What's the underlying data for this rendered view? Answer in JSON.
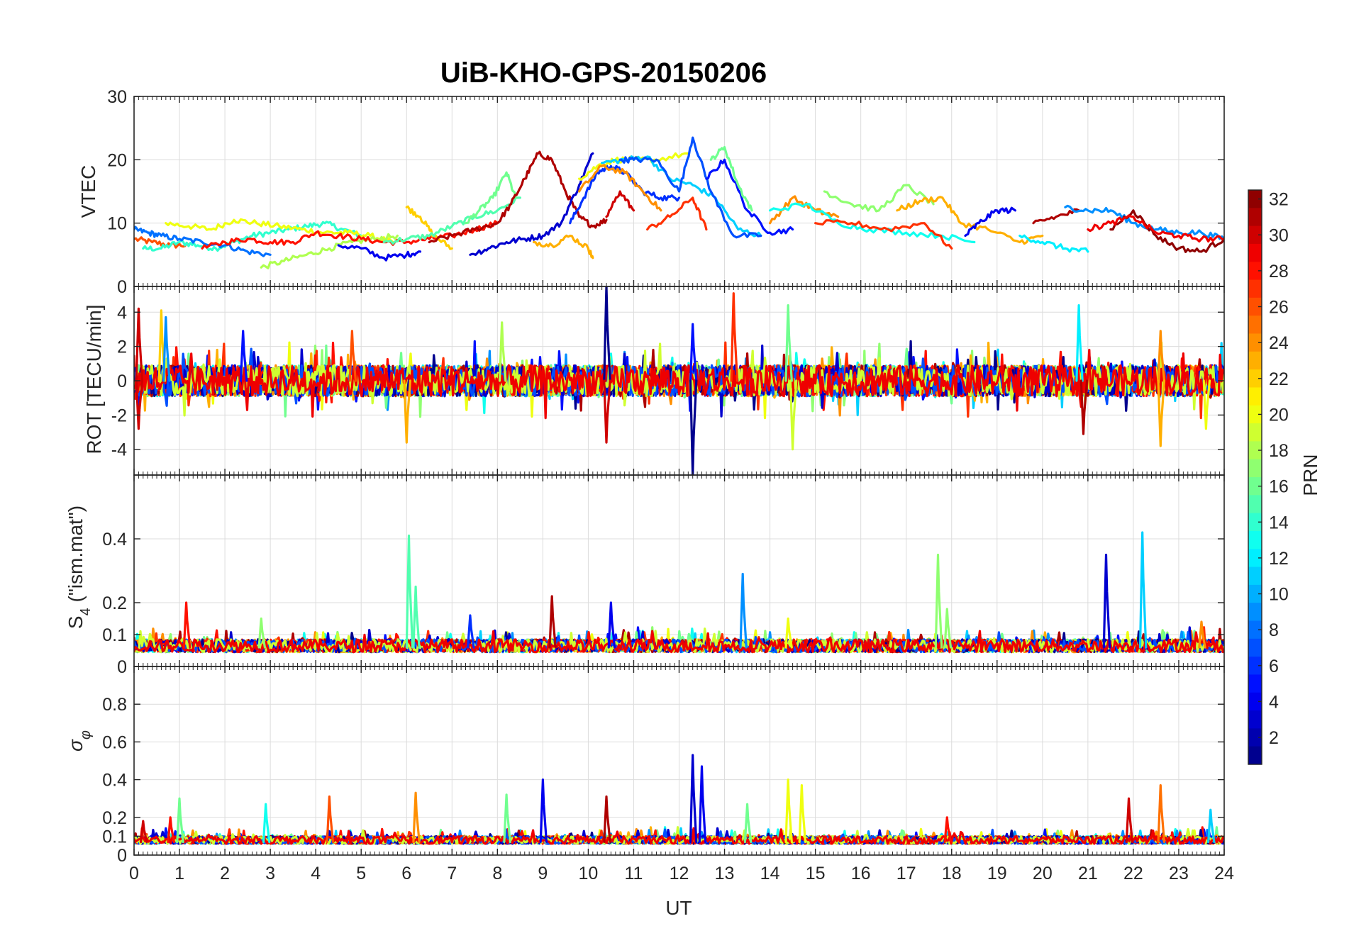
{
  "figure": {
    "title": "UiB-KHO-GPS-20150206"
  },
  "chart_data": [
    {
      "type": "line",
      "panel": "VTEC",
      "ylabel": "VTEC",
      "xlabel": "",
      "xlim": [
        0,
        24
      ],
      "ylim": [
        0,
        30
      ],
      "yticks": [
        0,
        10,
        20,
        30
      ],
      "grid": true,
      "series": [
        {
          "prn": 26,
          "x": [
            0,
            0.4,
            0.8,
            1.2
          ],
          "y": [
            7.5,
            7,
            6.5,
            6.5
          ]
        },
        {
          "prn": 14,
          "x": [
            0.2,
            0.6,
            1.0,
            1.4,
            1.8,
            2.2,
            2.6,
            3.0,
            3.4,
            3.8,
            4.2,
            4.6,
            5.0
          ],
          "y": [
            6,
            6,
            7,
            6.5,
            6,
            7,
            8,
            8.5,
            9,
            9.5,
            10,
            9,
            8
          ]
        },
        {
          "prn": 20,
          "x": [
            0.7,
            1.2,
            1.7,
            2.2,
            2.7,
            3.2,
            3.7,
            4.2,
            4.7,
            5.2,
            5.7
          ],
          "y": [
            10,
            9.5,
            9,
            10.5,
            10,
            9.5,
            9,
            8.5,
            8.5,
            8,
            7
          ]
        },
        {
          "prn": 8,
          "x": [
            0,
            0.3,
            0.6,
            1.0,
            1.5,
            2.0,
            2.5,
            3.0
          ],
          "y": [
            9,
            8.5,
            8,
            7.5,
            7,
            6.5,
            5.5,
            5
          ]
        },
        {
          "prn": 18,
          "x": [
            2.8,
            3.3,
            3.8,
            4.3,
            4.8,
            5.3,
            5.8
          ],
          "y": [
            3,
            4,
            5,
            6,
            7,
            7.5,
            8
          ]
        },
        {
          "prn": 28,
          "x": [
            1.5,
            2.0,
            2.5,
            3.0,
            3.5,
            4.0,
            4.5,
            5.0,
            5.5,
            6.0,
            6.5,
            7.0,
            7.5,
            8.0
          ],
          "y": [
            6,
            7,
            7.5,
            7,
            7,
            8.5,
            8,
            7.5,
            7,
            7,
            7.5,
            8,
            9,
            10
          ]
        },
        {
          "prn": 4,
          "x": [
            4.5,
            5.0,
            5.5,
            6.0,
            6.3
          ],
          "y": [
            6.5,
            6,
            4.5,
            5,
            5.5
          ]
        },
        {
          "prn": 22,
          "x": [
            6.0,
            6.3,
            6.6,
            7.0
          ],
          "y": [
            12.5,
            11,
            8,
            6
          ]
        },
        {
          "prn": 15,
          "x": [
            5.5,
            6.0,
            6.5,
            7.0,
            7.5,
            8.0,
            8.5
          ],
          "y": [
            7,
            7.5,
            8,
            9.5,
            11,
            12,
            14
          ]
        },
        {
          "prn": 16,
          "x": [
            7.3,
            7.6,
            7.9,
            8.2,
            8.4
          ],
          "y": [
            10,
            12,
            14,
            18,
            14
          ]
        },
        {
          "prn": 31,
          "x": [
            6.5,
            7.0,
            7.5,
            8.0,
            8.3,
            8.6,
            8.9,
            9.2,
            9.5,
            9.8,
            10.1,
            10.4
          ],
          "y": [
            7,
            8,
            9,
            10,
            13,
            17,
            21,
            20,
            15,
            11,
            9.5,
            10.5
          ]
        },
        {
          "prn": 3,
          "x": [
            7.4,
            7.8,
            8.2,
            8.6,
            9.0,
            9.4,
            9.8,
            10.1
          ],
          "y": [
            5,
            6,
            7,
            7.5,
            8,
            10,
            16,
            21
          ]
        },
        {
          "prn": 23,
          "x": [
            8.8,
            9.2,
            9.6,
            10.0,
            10.1
          ],
          "y": [
            7,
            6.5,
            8,
            6,
            4.5
          ]
        },
        {
          "prn": 6,
          "x": [
            9.6,
            9.9,
            10.2,
            10.5,
            10.8,
            11.2,
            11.6,
            12.0
          ],
          "y": [
            10,
            14,
            18,
            19,
            18,
            15,
            14,
            14
          ]
        },
        {
          "prn": 20,
          "x": [
            9.8,
            10.2,
            10.6,
            11.0,
            11.5,
            12.2
          ],
          "y": [
            17,
            19,
            20,
            20,
            20,
            21
          ]
        },
        {
          "prn": 24,
          "x": [
            9.8,
            10.3,
            10.8,
            11.2,
            11.6
          ],
          "y": [
            15,
            19,
            18,
            15,
            12
          ]
        },
        {
          "prn": 11,
          "x": [
            10.3,
            10.8,
            11.3,
            11.8,
            12.3,
            12.8,
            13.3,
            13.8
          ],
          "y": [
            19.5,
            20,
            20.5,
            17,
            16,
            14,
            9,
            8
          ]
        },
        {
          "prn": 7,
          "x": [
            10.7,
            11.0,
            11.5,
            12.0,
            12.3,
            12.7,
            13.2,
            13.8
          ],
          "y": [
            20,
            20,
            20,
            15,
            23.5,
            15,
            8,
            8
          ]
        },
        {
          "prn": 30,
          "x": [
            10.4,
            10.7,
            11.0
          ],
          "y": [
            11,
            15,
            12
          ]
        },
        {
          "prn": 27,
          "x": [
            11.3,
            11.8,
            12.3,
            12.6
          ],
          "y": [
            9,
            11,
            14,
            9
          ]
        },
        {
          "prn": 5,
          "x": [
            12.6,
            13.0,
            13.5,
            14.0,
            14.5
          ],
          "y": [
            17,
            20,
            12,
            8.5,
            9
          ]
        },
        {
          "prn": 16,
          "x": [
            12.7,
            13.0,
            13.3,
            13.6
          ],
          "y": [
            20,
            22,
            16,
            12
          ]
        },
        {
          "prn": 24,
          "x": [
            14.0,
            14.5,
            15.0,
            15.5
          ],
          "y": [
            10,
            14,
            12,
            11
          ]
        },
        {
          "prn": 13,
          "x": [
            14.0,
            14.8,
            15.5,
            16.2,
            17.0,
            17.8,
            18.5
          ],
          "y": [
            12,
            13,
            10,
            9,
            8.5,
            8,
            7
          ]
        },
        {
          "prn": 17,
          "x": [
            15.2,
            15.8,
            16.4,
            17.0,
            17.6
          ],
          "y": [
            15,
            13,
            12,
            16,
            13
          ]
        },
        {
          "prn": 27,
          "x": [
            15.0,
            15.8,
            16.6,
            17.4,
            18.0
          ],
          "y": [
            10,
            10,
            9,
            10,
            6
          ]
        },
        {
          "prn": 23,
          "x": [
            16.8,
            17.3,
            17.8,
            18.2,
            18.8,
            19.5,
            20.0
          ],
          "y": [
            12,
            13.5,
            14,
            10,
            9,
            7,
            8
          ]
        },
        {
          "prn": 4,
          "x": [
            18.3,
            18.6,
            19.0,
            19.4
          ],
          "y": [
            8,
            10,
            12,
            12
          ]
        },
        {
          "prn": 12,
          "x": [
            19.5,
            20.0,
            20.5,
            21.0
          ],
          "y": [
            8,
            7,
            6,
            5.5
          ]
        },
        {
          "prn": 31,
          "x": [
            19.8,
            20.3,
            20.8
          ],
          "y": [
            10,
            11,
            12
          ]
        },
        {
          "prn": 9,
          "x": [
            20.5,
            21.0,
            21.5,
            22.0,
            22.5,
            23.0,
            23.5,
            24.0
          ],
          "y": [
            12.5,
            12,
            12,
            10,
            9,
            8.5,
            8.5,
            7.5
          ]
        },
        {
          "prn": 32,
          "x": [
            21.5,
            22.0,
            22.5,
            23.0,
            23.5,
            24.0
          ],
          "y": [
            9,
            12,
            8,
            6,
            5.5,
            7.5
          ]
        },
        {
          "prn": 29,
          "x": [
            21.0,
            21.5,
            22.0,
            22.5,
            23.0,
            23.5,
            24.0
          ],
          "y": [
            9,
            10,
            11,
            8.5,
            8,
            7.5,
            7.5
          ]
        }
      ]
    },
    {
      "type": "line",
      "panel": "ROT",
      "ylabel": "ROT [TECU/min]",
      "xlabel": "",
      "xlim": [
        0,
        24
      ],
      "ylim": [
        -5.5,
        5.5
      ],
      "yticks": [
        -4,
        -2,
        0,
        2,
        4
      ],
      "grid": true,
      "spikes": [
        {
          "prn": 30,
          "x": 0.1,
          "y": 4.2
        },
        {
          "prn": 30,
          "x": 0.1,
          "y": -2.8
        },
        {
          "prn": 22,
          "x": 0.6,
          "y": 4.1
        },
        {
          "prn": 9,
          "x": 0.7,
          "y": 3.7
        },
        {
          "prn": 5,
          "x": 2.4,
          "y": 2.9
        },
        {
          "prn": 26,
          "x": 4.8,
          "y": 2.9
        },
        {
          "prn": 23,
          "x": 6.0,
          "y": -3.6
        },
        {
          "prn": 18,
          "x": 8.1,
          "y": 3.4
        },
        {
          "prn": 1,
          "x": 10.4,
          "y": 5.5
        },
        {
          "prn": 30,
          "x": 10.4,
          "y": -3.6
        },
        {
          "prn": 5,
          "x": 12.3,
          "y": 3.3
        },
        {
          "prn": 1,
          "x": 12.3,
          "y": -5.5
        },
        {
          "prn": 27,
          "x": 13.2,
          "y": 5.1
        },
        {
          "prn": 16,
          "x": 14.4,
          "y": 4.4
        },
        {
          "prn": 19,
          "x": 14.5,
          "y": -4.0
        },
        {
          "prn": 12,
          "x": 20.8,
          "y": 4.4
        },
        {
          "prn": 31,
          "x": 20.9,
          "y": -3.1
        },
        {
          "prn": 24,
          "x": 22.6,
          "y": 2.9
        },
        {
          "prn": 23,
          "x": 22.6,
          "y": -3.8
        },
        {
          "prn": 20,
          "x": 23.6,
          "y": -2.8
        }
      ]
    },
    {
      "type": "line",
      "panel": "S4",
      "ylabel": "S4 (\"ism.mat\")",
      "ylabel_main": "S",
      "ylabel_sub": "4",
      "ylabel_rest": " (\"ism.mat\")",
      "xlabel": "",
      "xlim": [
        0,
        24
      ],
      "ylim": [
        0,
        0.6
      ],
      "yticks": [
        0,
        0.1,
        0.2,
        0.4
      ],
      "grid": true,
      "spikes": [
        {
          "prn": 28,
          "x": 1.15,
          "y": 0.2
        },
        {
          "prn": 17,
          "x": 2.8,
          "y": 0.15
        },
        {
          "prn": 15,
          "x": 6.05,
          "y": 0.41
        },
        {
          "prn": 15,
          "x": 6.2,
          "y": 0.25
        },
        {
          "prn": 6,
          "x": 7.4,
          "y": 0.16
        },
        {
          "prn": 31,
          "x": 9.2,
          "y": 0.22
        },
        {
          "prn": 4,
          "x": 10.5,
          "y": 0.2
        },
        {
          "prn": 9,
          "x": 13.4,
          "y": 0.29
        },
        {
          "prn": 20,
          "x": 14.4,
          "y": 0.15
        },
        {
          "prn": 17,
          "x": 17.7,
          "y": 0.35
        },
        {
          "prn": 17,
          "x": 17.9,
          "y": 0.18
        },
        {
          "prn": 3,
          "x": 21.4,
          "y": 0.35
        },
        {
          "prn": 11,
          "x": 22.2,
          "y": 0.42
        },
        {
          "prn": 24,
          "x": 23.5,
          "y": 0.14
        }
      ]
    },
    {
      "type": "line",
      "panel": "sigma_phi",
      "ylabel": "σφ",
      "ylabel_main": "σ",
      "ylabel_sub": "φ",
      "xlabel": "UT",
      "xlim": [
        0,
        24
      ],
      "ylim": [
        0,
        1
      ],
      "yticks": [
        0,
        0.1,
        0.2,
        0.4,
        0.6,
        0.8
      ],
      "xticks": [
        0,
        1,
        2,
        3,
        4,
        5,
        6,
        7,
        8,
        9,
        10,
        11,
        12,
        13,
        14,
        15,
        16,
        17,
        18,
        19,
        20,
        21,
        22,
        23,
        24
      ],
      "grid": true,
      "spikes": [
        {
          "prn": 30,
          "x": 0.2,
          "y": 0.18
        },
        {
          "prn": 16,
          "x": 1.0,
          "y": 0.3
        },
        {
          "prn": 28,
          "x": 0.8,
          "y": 0.2
        },
        {
          "prn": 13,
          "x": 2.9,
          "y": 0.27
        },
        {
          "prn": 26,
          "x": 4.3,
          "y": 0.31
        },
        {
          "prn": 24,
          "x": 6.2,
          "y": 0.33
        },
        {
          "prn": 16,
          "x": 8.2,
          "y": 0.32
        },
        {
          "prn": 4,
          "x": 9.0,
          "y": 0.4
        },
        {
          "prn": 31,
          "x": 10.4,
          "y": 0.31
        },
        {
          "prn": 3,
          "x": 12.3,
          "y": 0.53
        },
        {
          "prn": 4,
          "x": 12.5,
          "y": 0.47
        },
        {
          "prn": 16,
          "x": 13.5,
          "y": 0.27
        },
        {
          "prn": 20,
          "x": 14.4,
          "y": 0.4
        },
        {
          "prn": 20,
          "x": 14.7,
          "y": 0.37
        },
        {
          "prn": 28,
          "x": 17.9,
          "y": 0.2
        },
        {
          "prn": 30,
          "x": 21.9,
          "y": 0.3
        },
        {
          "prn": 25,
          "x": 22.6,
          "y": 0.37
        },
        {
          "prn": 11,
          "x": 23.7,
          "y": 0.24
        }
      ]
    }
  ],
  "colorbar": {
    "label": "PRN",
    "clim": [
      1,
      32
    ],
    "ticks": [
      2,
      4,
      6,
      8,
      10,
      12,
      14,
      16,
      18,
      20,
      22,
      24,
      26,
      28,
      30,
      32
    ],
    "colormap": "jet"
  }
}
